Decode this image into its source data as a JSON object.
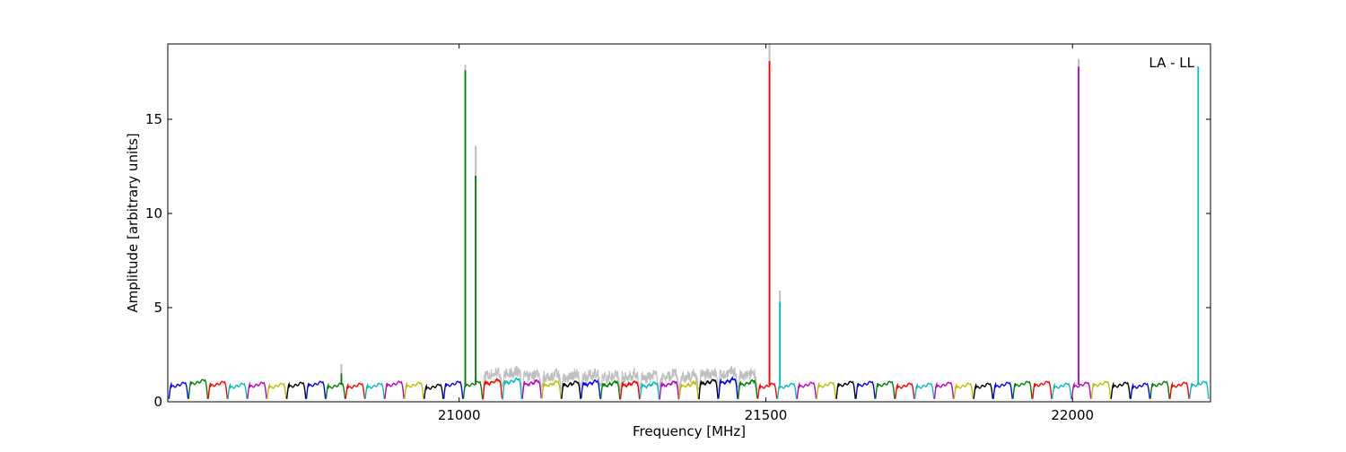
{
  "chart_data": {
    "type": "line",
    "title": "",
    "xlabel": "Frequency [MHz]",
    "ylabel": "Amplitude [arbitrary units]",
    "annotation": "LA - LL",
    "xlim": [
      20525,
      22225
    ],
    "ylim": [
      0,
      19
    ],
    "grid": false,
    "legend": "none",
    "x_ticks": [
      {
        "value": 21000,
        "label": "21000"
      },
      {
        "value": 21500,
        "label": "21500"
      },
      {
        "value": 22000,
        "label": "22000"
      }
    ],
    "y_ticks": [
      {
        "value": 0,
        "label": "0"
      },
      {
        "value": 5,
        "label": "5"
      },
      {
        "value": 10,
        "label": "10"
      },
      {
        "value": 15,
        "label": "15"
      }
    ],
    "channel_width_mhz": 32,
    "start_freq_mhz": 20527,
    "channel_colors": [
      "#0000ff",
      "#008000",
      "#ff0000",
      "#00bfbf",
      "#bf00bf",
      "#bfbf00",
      "#000000"
    ],
    "raw_spectrum_color": "#bfbfbf",
    "noisy_band_mhz": [
      21040,
      21500
    ],
    "bandpass_levels": [
      1.15,
      1.3,
      1.2,
      1.1,
      1.15,
      1.1,
      1.15,
      1.2,
      1.1,
      1.1,
      1.1,
      1.2,
      1.15,
      1.05,
      1.2,
      1.2,
      1.3,
      1.35,
      1.25,
      1.2,
      1.2,
      1.25,
      1.2,
      1.2,
      1.15,
      1.2,
      1.15,
      1.3,
      1.35,
      1.25,
      1.1,
      1.1,
      1.15,
      1.15,
      1.2,
      1.2,
      1.2,
      1.1,
      1.1,
      1.15,
      1.1,
      1.1,
      1.15,
      1.2,
      1.2,
      1.1,
      1.15,
      1.2,
      1.15,
      1.1,
      1.2,
      1.15,
      1.2
    ],
    "spikes": [
      {
        "x": 20808,
        "y": 1.5,
        "raw": 2.0
      },
      {
        "x": 21010,
        "y": 17.6,
        "raw": 17.9
      },
      {
        "x": 21027,
        "y": 12.0,
        "raw": 13.6
      },
      {
        "x": 21506,
        "y": 18.1,
        "raw": 19.0
      },
      {
        "x": 21523,
        "y": 5.3,
        "raw": 5.9
      },
      {
        "x": 22010,
        "y": 17.8,
        "raw": 18.2
      },
      {
        "x": 22205,
        "y": 17.8,
        "raw": 17.8
      }
    ]
  }
}
